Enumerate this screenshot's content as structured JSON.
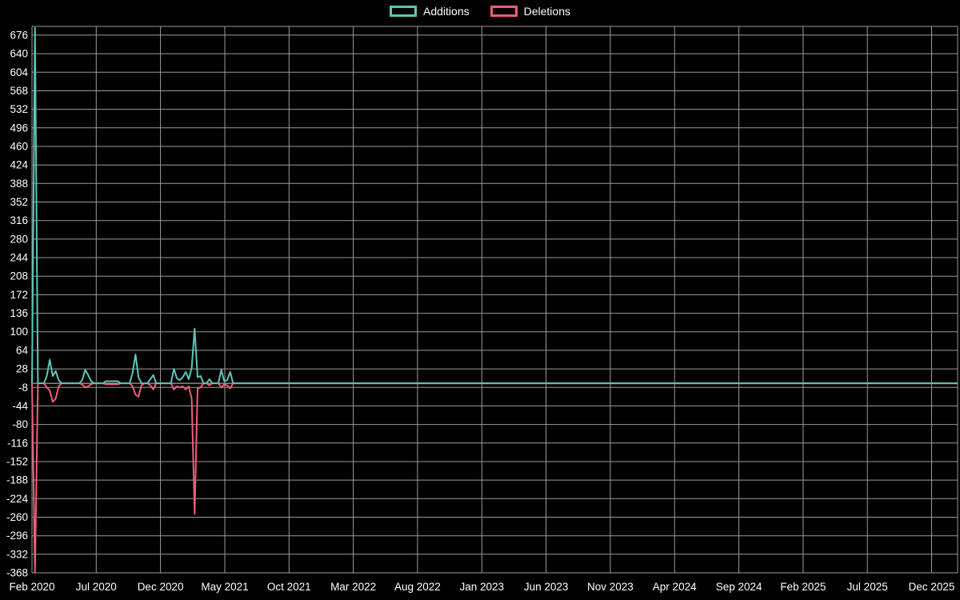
{
  "chart_data": {
    "type": "line",
    "title": "",
    "legend_position": "top-center",
    "grid": true,
    "background_color": "#000000",
    "grid_color": "#9c9c9c",
    "zero_axis_color": "#c8c8c8",
    "text_color": "#ffffff",
    "x_tick_labels": [
      "Feb 2020",
      "Jul 2020",
      "Dec 2020",
      "May 2021",
      "Oct 2021",
      "Mar 2022",
      "Aug 2022",
      "Jan 2023",
      "Jun 2023",
      "Nov 2023",
      "Apr 2024",
      "Sep 2024",
      "Feb 2025",
      "Jul 2025",
      "Dec 2025"
    ],
    "y_tick_values": [
      676,
      640,
      604,
      568,
      532,
      496,
      460,
      424,
      388,
      352,
      316,
      280,
      244,
      208,
      172,
      136,
      100,
      64,
      28,
      -8,
      -44,
      -80,
      -116,
      -152,
      -188,
      -224,
      -260,
      -296,
      -332,
      -368
    ],
    "ylim": [
      -368,
      693
    ],
    "x_weeks_total": 313,
    "weeks_per_tick": 21.73,
    "series": [
      {
        "name": "Additions",
        "color": "#5bc6b8",
        "baseline": 0,
        "points": [
          [
            0,
            0
          ],
          [
            1,
            690
          ],
          [
            2,
            0
          ],
          [
            3,
            0
          ],
          [
            4,
            0
          ],
          [
            5,
            14
          ],
          [
            6,
            46
          ],
          [
            7,
            14
          ],
          [
            8,
            24
          ],
          [
            9,
            6
          ],
          [
            10,
            0
          ],
          [
            16,
            0
          ],
          [
            17,
            6
          ],
          [
            18,
            26
          ],
          [
            19,
            16
          ],
          [
            20,
            4
          ],
          [
            21,
            0
          ],
          [
            24,
            0
          ],
          [
            25,
            4
          ],
          [
            26,
            4
          ],
          [
            27,
            4
          ],
          [
            28,
            4
          ],
          [
            29,
            4
          ],
          [
            30,
            0
          ],
          [
            33,
            0
          ],
          [
            34,
            20
          ],
          [
            35,
            56
          ],
          [
            36,
            12
          ],
          [
            37,
            0
          ],
          [
            39,
            0
          ],
          [
            40,
            8
          ],
          [
            41,
            16
          ],
          [
            42,
            0
          ],
          [
            47,
            0
          ],
          [
            48,
            28
          ],
          [
            49,
            10
          ],
          [
            50,
            6
          ],
          [
            51,
            12
          ],
          [
            52,
            22
          ],
          [
            53,
            8
          ],
          [
            54,
            30
          ],
          [
            55,
            106
          ],
          [
            56,
            12
          ],
          [
            57,
            14
          ],
          [
            58,
            0
          ],
          [
            59,
            0
          ],
          [
            60,
            8
          ],
          [
            61,
            0
          ],
          [
            63,
            0
          ],
          [
            64,
            26
          ],
          [
            65,
            4
          ],
          [
            66,
            6
          ],
          [
            67,
            22
          ],
          [
            68,
            0
          ]
        ]
      },
      {
        "name": "Deletions",
        "color": "#ef5d77",
        "baseline": 0,
        "points": [
          [
            0,
            0
          ],
          [
            1,
            -368
          ],
          [
            2,
            0
          ],
          [
            3,
            0
          ],
          [
            4,
            0
          ],
          [
            5,
            -8
          ],
          [
            6,
            -14
          ],
          [
            7,
            -36
          ],
          [
            8,
            -30
          ],
          [
            9,
            -6
          ],
          [
            10,
            0
          ],
          [
            16,
            0
          ],
          [
            17,
            -2
          ],
          [
            18,
            -8
          ],
          [
            19,
            -6
          ],
          [
            20,
            -2
          ],
          [
            21,
            0
          ],
          [
            24,
            0
          ],
          [
            25,
            -2
          ],
          [
            26,
            -2
          ],
          [
            27,
            -2
          ],
          [
            28,
            -2
          ],
          [
            29,
            -2
          ],
          [
            30,
            0
          ],
          [
            33,
            0
          ],
          [
            34,
            -6
          ],
          [
            35,
            -22
          ],
          [
            36,
            -26
          ],
          [
            37,
            -4
          ],
          [
            38,
            0
          ],
          [
            39,
            0
          ],
          [
            40,
            -4
          ],
          [
            41,
            -12
          ],
          [
            42,
            0
          ],
          [
            47,
            0
          ],
          [
            48,
            -12
          ],
          [
            49,
            -6
          ],
          [
            50,
            -8
          ],
          [
            51,
            -6
          ],
          [
            52,
            -12
          ],
          [
            53,
            -6
          ],
          [
            54,
            -30
          ],
          [
            55,
            -254
          ],
          [
            56,
            -10
          ],
          [
            57,
            -8
          ],
          [
            58,
            0
          ],
          [
            59,
            0
          ],
          [
            60,
            -4
          ],
          [
            61,
            0
          ],
          [
            63,
            0
          ],
          [
            64,
            -8
          ],
          [
            65,
            -2
          ],
          [
            66,
            -4
          ],
          [
            67,
            -10
          ],
          [
            68,
            0
          ]
        ]
      }
    ]
  }
}
